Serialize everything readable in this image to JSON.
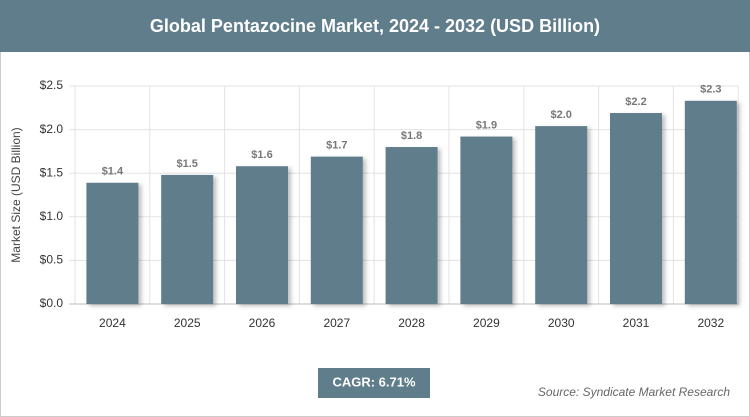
{
  "chart_data": {
    "type": "bar",
    "title": "Global Pentazocine Market, 2024 - 2032 (USD Billion)",
    "y_label": "Market Size (USD Billion)",
    "categories": [
      "2024",
      "2025",
      "2026",
      "2027",
      "2028",
      "2029",
      "2030",
      "2031",
      "2032"
    ],
    "values": [
      1.39,
      1.48,
      1.58,
      1.69,
      1.8,
      1.92,
      2.04,
      2.19,
      2.33
    ],
    "value_labels": [
      "$1.4",
      "$1.5",
      "$1.6",
      "$1.7",
      "$1.8",
      "$1.9",
      "$2.0",
      "$2.2",
      "$2.3"
    ],
    "color": "#607d8b",
    "ylim": [
      0,
      2.5
    ],
    "yticks": [
      {
        "value": 0,
        "label": "$0.0"
      },
      {
        "value": 0.5,
        "label": "$0.5"
      },
      {
        "value": 1,
        "label": "$1.0"
      },
      {
        "value": 1.5,
        "label": "$1.5"
      },
      {
        "value": 2,
        "label": "$2.0"
      },
      {
        "value": 2.5,
        "label": "$2.5"
      }
    ],
    "grid": true,
    "annotation": "CAGR: 6.71%",
    "source": "Source: Syndicate Market Research"
  }
}
